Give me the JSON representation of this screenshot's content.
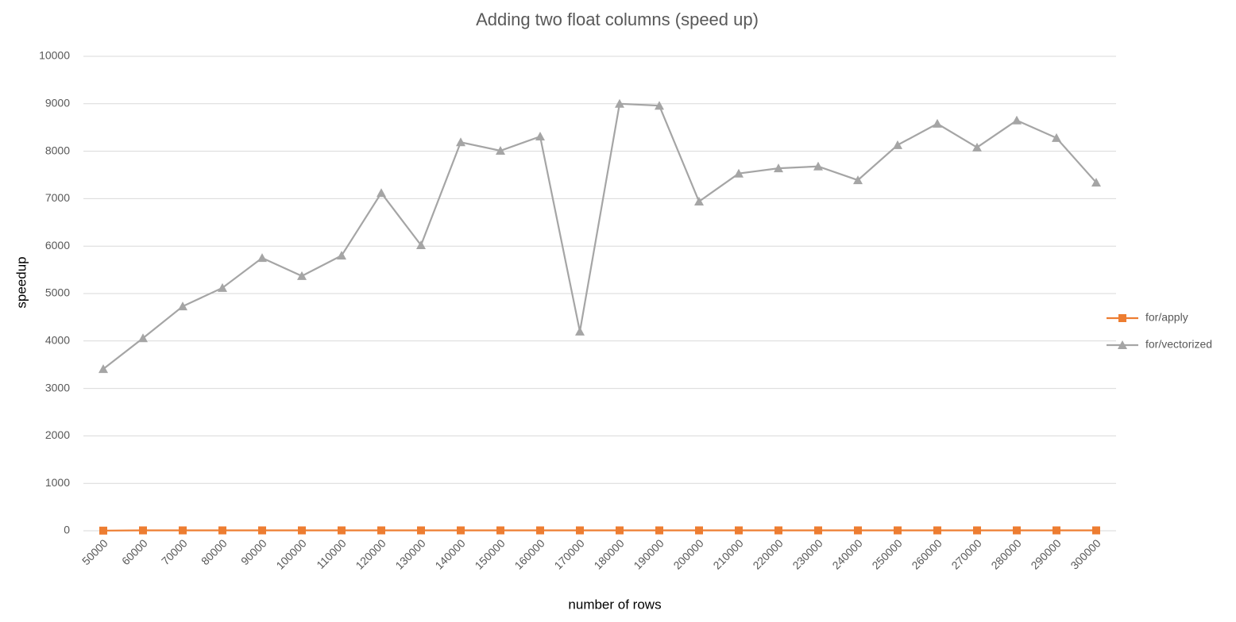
{
  "chart_data": {
    "type": "line",
    "title": "Adding two float columns (speed up)",
    "x_label": "number of rows",
    "y_label": "speedup",
    "categories": [
      "50000",
      "60000",
      "70000",
      "80000",
      "90000",
      "100000",
      "110000",
      "120000",
      "130000",
      "140000",
      "150000",
      "160000",
      "170000",
      "180000",
      "190000",
      "200000",
      "210000",
      "220000",
      "230000",
      "240000",
      "250000",
      "260000",
      "270000",
      "280000",
      "290000",
      "300000"
    ],
    "series": [
      {
        "name": "for/apply",
        "color": "#ed7d31",
        "marker": "square",
        "values": [
          3,
          8,
          8,
          8,
          8,
          8,
          8,
          8,
          8,
          8,
          8,
          8,
          8,
          8,
          8,
          8,
          8,
          8,
          8,
          8,
          8,
          8,
          8,
          8,
          8,
          8
        ]
      },
      {
        "name": "for/vectorized",
        "color": "#a5a5a5",
        "marker": "triangle",
        "values": [
          3410,
          4060,
          4730,
          5120,
          5750,
          5370,
          5800,
          7120,
          6020,
          8190,
          8010,
          8310,
          4200,
          9000,
          8960,
          6940,
          7530,
          7640,
          7680,
          7390,
          8130,
          8580,
          8080,
          8650,
          8280,
          7340
        ]
      }
    ],
    "ylim": [
      0,
      10000
    ],
    "yticks": [
      0,
      1000,
      2000,
      3000,
      4000,
      5000,
      6000,
      7000,
      8000,
      9000,
      10000
    ],
    "grid": true,
    "legend": "right"
  }
}
